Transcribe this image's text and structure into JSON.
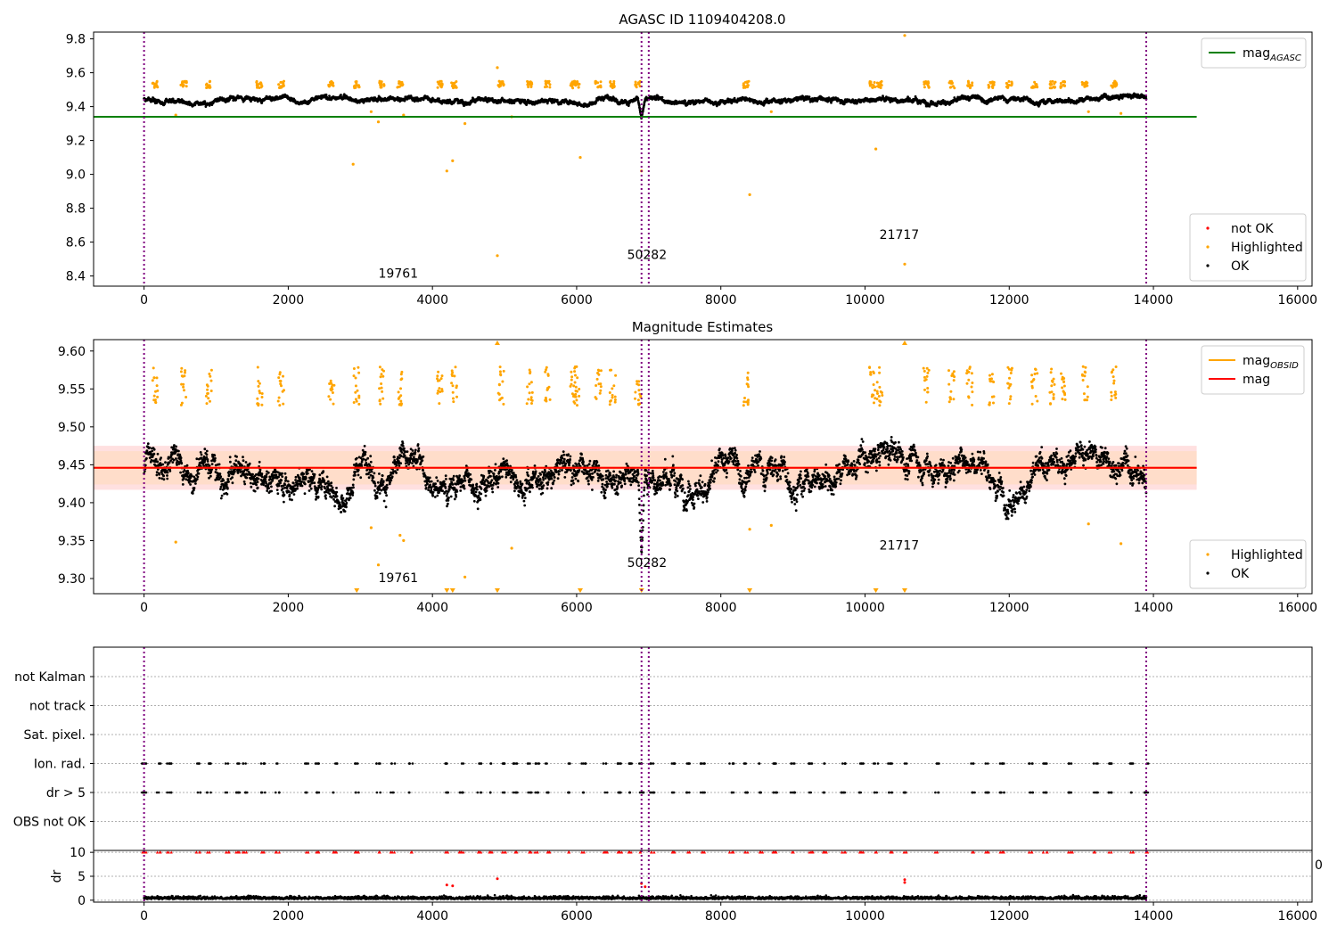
{
  "chart_data": [
    {
      "id": "top",
      "type": "scatter",
      "title": "AGASC ID 1109404208.0",
      "xlim": [
        -700,
        16200
      ],
      "ylim": [
        8.34,
        9.84
      ],
      "xticks": [
        0,
        2000,
        4000,
        6000,
        8000,
        10000,
        12000,
        14000,
        16000
      ],
      "yticks": [
        "8.4",
        "8.6",
        "8.8",
        "9.0",
        "9.2",
        "9.4",
        "9.6",
        "9.8"
      ],
      "obs_lines_x": [
        0,
        6900,
        7000,
        13900
      ],
      "hlines": [
        {
          "name": "mag",
          "sub": "AGASC",
          "y": 9.34,
          "x": [
            -700,
            14600
          ],
          "color": "#008000"
        }
      ],
      "baseline": {
        "center": 9.445,
        "amp": 0.025
      },
      "dip": {
        "x": [
          6850,
          6950
        ],
        "to": 9.33
      },
      "highlighted": [
        [
          440,
          9.35
        ],
        [
          2900,
          9.06
        ],
        [
          3150,
          9.37
        ],
        [
          3250,
          9.31
        ],
        [
          3600,
          9.35
        ],
        [
          4200,
          9.02
        ],
        [
          4280,
          9.08
        ],
        [
          4450,
          9.3
        ],
        [
          4900,
          9.63
        ],
        [
          4900,
          8.52
        ],
        [
          5100,
          9.34
        ],
        [
          6050,
          9.1
        ],
        [
          6900,
          9.02
        ],
        [
          8400,
          8.88
        ],
        [
          8700,
          9.37
        ],
        [
          10150,
          9.15
        ],
        [
          10550,
          9.82
        ],
        [
          10550,
          8.47
        ],
        [
          13100,
          9.37
        ],
        [
          13550,
          9.36
        ]
      ],
      "highlight_clusters": [
        150,
        550,
        900,
        1600,
        1900,
        2600,
        2950,
        3300,
        3550,
        4100,
        4300,
        4950,
        5350,
        5600,
        5950,
        6000,
        6300,
        6500,
        6850,
        8350,
        10100,
        10200,
        10850,
        11200,
        11450,
        11750,
        12000,
        12350,
        12600,
        12750,
        13050,
        13450
      ],
      "labels": [
        {
          "x": 3250,
          "y": 8.39,
          "text": "19761"
        },
        {
          "x": 6700,
          "y": 8.5,
          "text": "50282"
        },
        {
          "x": 10200,
          "y": 8.62,
          "text": "21717"
        }
      ],
      "legend_upper": [
        {
          "label": "mag",
          "sub": "AGASC",
          "color": "#008000",
          "kind": "line"
        }
      ],
      "legend_lower": [
        {
          "label": "not OK",
          "color": "#ff0000",
          "kind": "dot"
        },
        {
          "label": "Highlighted",
          "color": "#ffa500",
          "kind": "dot"
        },
        {
          "label": "OK",
          "color": "#000000",
          "kind": "dot"
        }
      ]
    },
    {
      "id": "mid",
      "type": "scatter",
      "title": "Magnitude Estimates",
      "xlim": [
        -700,
        16200
      ],
      "ylim": [
        9.28,
        9.615
      ],
      "xticks": [
        0,
        2000,
        4000,
        6000,
        8000,
        10000,
        12000,
        14000,
        16000
      ],
      "yticks": [
        "9.30",
        "9.35",
        "9.40",
        "9.45",
        "9.50",
        "9.55",
        "9.60"
      ],
      "obs_lines_x": [
        0,
        6900,
        7000,
        13900
      ],
      "band": {
        "y": [
          9.417,
          9.475
        ],
        "x": [
          -700,
          14600
        ]
      },
      "hlines": [
        {
          "name": "mag",
          "sub": "OBSID",
          "y": 9.446,
          "x": [
            -700,
            14600
          ],
          "color": "#ffa500"
        },
        {
          "name": "mag",
          "y": 9.446,
          "x": [
            -700,
            14600
          ],
          "color": "#ff0000"
        }
      ],
      "baseline": {
        "center": 9.445,
        "amp": 0.032
      },
      "dip": {
        "x": [
          6850,
          6950
        ],
        "to": 9.33
      },
      "highlighted": [
        [
          440,
          9.348
        ],
        [
          3150,
          9.367
        ],
        [
          3250,
          9.318
        ],
        [
          3550,
          9.357
        ],
        [
          3600,
          9.35
        ],
        [
          4450,
          9.302
        ],
        [
          5100,
          9.34
        ],
        [
          8400,
          9.365
        ],
        [
          8700,
          9.37
        ],
        [
          13100,
          9.372
        ],
        [
          13550,
          9.346
        ]
      ],
      "clipped_bottom": [
        2950,
        4200,
        4280,
        4900,
        6050,
        6900,
        8400,
        10150,
        10550
      ],
      "clipped_top": [
        4900,
        10550
      ],
      "highlight_clusters": [
        150,
        550,
        900,
        1600,
        1900,
        2600,
        2950,
        3300,
        3550,
        4100,
        4300,
        4950,
        5350,
        5600,
        5950,
        6000,
        6300,
        6500,
        6850,
        8350,
        10100,
        10200,
        10850,
        11200,
        11450,
        11750,
        12000,
        12350,
        12600,
        12750,
        13050,
        13450
      ],
      "labels": [
        {
          "x": 3250,
          "y": 9.295,
          "text": "19761"
        },
        {
          "x": 6700,
          "y": 9.315,
          "text": "50282"
        },
        {
          "x": 10200,
          "y": 9.338,
          "text": "21717"
        }
      ],
      "legend_upper": [
        {
          "label": "mag",
          "sub": "OBSID",
          "color": "#ffa500",
          "kind": "line"
        },
        {
          "label": "mag",
          "color": "#ff0000",
          "kind": "line"
        }
      ],
      "legend_lower": [
        {
          "label": "Highlighted",
          "color": "#ffa500",
          "kind": "dot"
        },
        {
          "label": "OK",
          "color": "#000000",
          "kind": "dot"
        }
      ]
    },
    {
      "id": "flags",
      "type": "scatter",
      "xlim": [
        -700,
        16200
      ],
      "rows": [
        "not Kalman",
        "not track",
        "Sat. pixel.",
        "Ion. rad.",
        "dr > 5",
        "OBS not OK"
      ],
      "flag_rows": [
        "Ion. rad.",
        "dr > 5"
      ],
      "flag_clusters": [
        0,
        200,
        350,
        750,
        900,
        1150,
        1300,
        1400,
        1650,
        1850,
        2250,
        2400,
        2650,
        2950,
        3250,
        3450,
        3700,
        4200,
        4400,
        4650,
        4800,
        5000,
        5150,
        5350,
        5450,
        5600,
        5900,
        6100,
        6400,
        6600,
        6750,
        6900,
        7050,
        7350,
        7550,
        7750,
        8150,
        8350,
        8550,
        8750,
        9000,
        9250,
        9450,
        9700,
        9950,
        10150,
        10350,
        10550,
        11000,
        11500,
        11700,
        11900,
        12300,
        12500,
        12850,
        13200,
        13400,
        13700,
        13900
      ],
      "obs_lines_x": [
        0,
        6900,
        7000,
        13900
      ],
      "edge_text": "0"
    },
    {
      "id": "dr",
      "type": "scatter",
      "ylabel": "dr",
      "xlim": [
        -700,
        16200
      ],
      "ylim": [
        -0.4,
        10.4
      ],
      "xticks": [
        0,
        2000,
        4000,
        6000,
        8000,
        10000,
        12000,
        14000,
        16000
      ],
      "yticks": [
        "0",
        "5",
        "10"
      ],
      "obs_lines_x": [
        0,
        6900,
        7000,
        13900
      ],
      "red_points": [
        [
          4200,
          3.2
        ],
        [
          4280,
          3.0
        ],
        [
          4900,
          4.5
        ],
        [
          6900,
          3.5
        ],
        [
          6950,
          2.8
        ],
        [
          10550,
          4.3
        ],
        [
          10550,
          3.7
        ]
      ],
      "red_clusters": [
        0,
        200,
        350,
        750,
        900,
        1150,
        1300,
        1400,
        1650,
        1850,
        2250,
        2400,
        2650,
        2950,
        3250,
        3450,
        3700,
        4200,
        4400,
        4650,
        4800,
        5000,
        5150,
        5350,
        5450,
        5600,
        5900,
        6100,
        6400,
        6600,
        6750,
        6900,
        7050,
        7350,
        7550,
        7750,
        8150,
        8350,
        8550,
        8750,
        9000,
        9250,
        9450,
        9700,
        9950,
        10150,
        10350,
        10550,
        11000,
        11500,
        11700,
        11900,
        12300,
        12500,
        12850,
        13200,
        13400,
        13700,
        13900
      ]
    }
  ]
}
